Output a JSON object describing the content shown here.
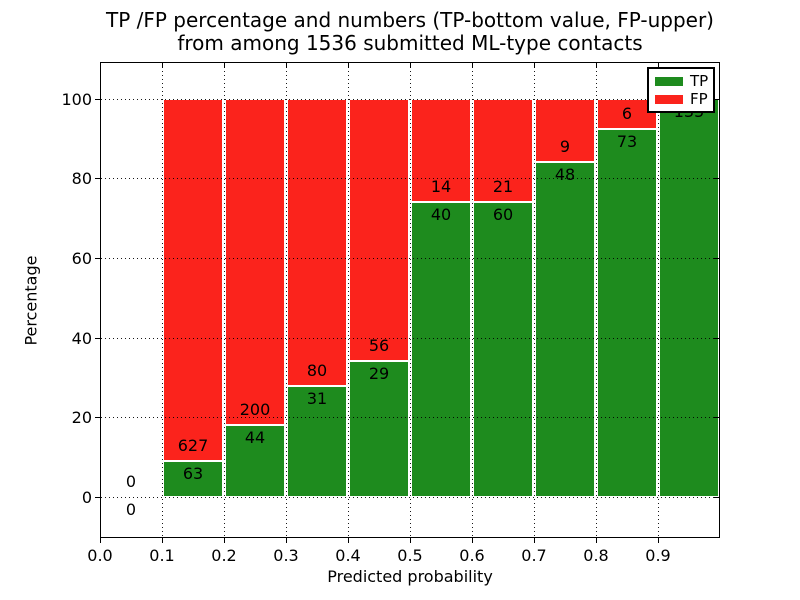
{
  "chart_data": {
    "type": "bar",
    "stacked": true,
    "title_line1": "TP /FP percentage and numbers (TP-bottom value, FP-upper)",
    "title_line2": "from among 1536 submitted ML-type contacts",
    "xlabel": "Predicted probability",
    "ylabel": "Percentage",
    "total_submitted": 1536,
    "bin_edges": [
      0.0,
      0.1,
      0.2,
      0.3,
      0.4,
      0.5,
      0.6,
      0.7,
      0.8,
      0.9,
      1.0
    ],
    "series": [
      {
        "name": "TP",
        "color": "#1e8b1e",
        "counts": [
          0,
          63,
          44,
          31,
          29,
          40,
          60,
          48,
          73,
          135
        ],
        "percent": [
          0,
          9.13,
          18.03,
          27.93,
          34.12,
          74.07,
          74.07,
          84.21,
          92.41,
          100
        ]
      },
      {
        "name": "FP",
        "color": "#fb231c",
        "counts": [
          0,
          627,
          200,
          80,
          56,
          14,
          21,
          9,
          6,
          0
        ],
        "percent": [
          0,
          90.87,
          81.97,
          72.07,
          65.88,
          25.93,
          25.93,
          15.79,
          7.59,
          0
        ]
      }
    ],
    "x_tick_labels": [
      "0.0",
      "0.1",
      "0.2",
      "0.3",
      "0.4",
      "0.5",
      "0.6",
      "0.7",
      "0.8",
      "0.9"
    ],
    "y_ticks": [
      0,
      20,
      40,
      60,
      80,
      100
    ],
    "xlim": [
      0,
      1
    ],
    "ylim": [
      -10.3,
      109.2
    ],
    "grid": "dotted",
    "label_convention": "TP-bottom value, FP-upper",
    "legend": {
      "position": "upper right",
      "entries": [
        {
          "label": "TP",
          "color": "#1e8b1e"
        },
        {
          "label": "FP",
          "color": "#fb231c"
        }
      ]
    }
  }
}
